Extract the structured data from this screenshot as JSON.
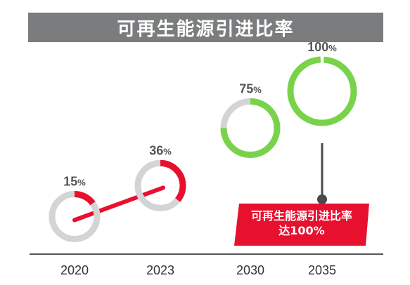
{
  "title": "可再生能源引进比率",
  "colors": {
    "title_bg": "#7a7c7e",
    "ring_bg": "#d4d4d4",
    "red": "#e8102f",
    "green": "#79d34a",
    "connector": "#4a4a4a",
    "axis": "#555555"
  },
  "callout": {
    "line1": "可再生能源引进比率",
    "line2": "达100%"
  },
  "chart_data": {
    "type": "line",
    "categories": [
      "2020",
      "2023",
      "2030",
      "2035"
    ],
    "values": [
      15,
      36,
      75,
      100
    ],
    "value_labels": [
      "15",
      "36",
      "75",
      "100"
    ],
    "unit": "%",
    "ylim": [
      0,
      100
    ],
    "title": "可再生能源引进比率",
    "xlabel": "",
    "ylabel": "",
    "grid": false
  }
}
